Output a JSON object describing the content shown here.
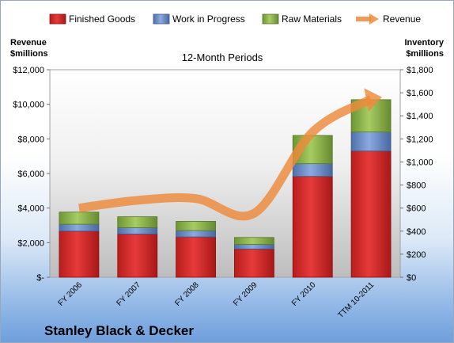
{
  "chart_data": {
    "type": "bar",
    "subtitle": "12-Month Periods",
    "company": "Stanley Black & Decker",
    "left_axis_title": [
      "Revenue",
      "$millions"
    ],
    "right_axis_title": [
      "Inventory",
      "$millions"
    ],
    "categories": [
      "FY 2006",
      "FY 2007",
      "FY 2008",
      "FY 2009",
      "FY 2010",
      "TTM 10-2011"
    ],
    "stacked": true,
    "series": [
      {
        "name": "Finished Goods",
        "axis": "right",
        "color": "#e02a2a",
        "values": [
          400,
          375,
          350,
          245,
          875,
          1095
        ]
      },
      {
        "name": "Work in Progress",
        "axis": "right",
        "color": "#6f92cc",
        "values": [
          60,
          55,
          55,
          40,
          110,
          165
        ]
      },
      {
        "name": "Raw Materials",
        "axis": "right",
        "color": "#8fb64a",
        "values": [
          105,
          95,
          80,
          60,
          245,
          280
        ]
      },
      {
        "name": "Revenue",
        "axis": "left",
        "type": "line",
        "color": "#ee8a3a",
        "values": [
          4000,
          4450,
          4550,
          3700,
          8400,
          10300
        ]
      }
    ],
    "left_axis": {
      "min": 0,
      "max": 12000,
      "step": 2000,
      "tick_labels": [
        "$-",
        "$2,000",
        "$4,000",
        "$6,000",
        "$8,000",
        "$10,000",
        "$12,000"
      ]
    },
    "right_axis": {
      "min": 0,
      "max": 1800,
      "step": 200,
      "tick_labels": [
        "$0",
        "$200",
        "$400",
        "$600",
        "$800",
        "$1,000",
        "$1,200",
        "$1,400",
        "$1,600",
        "$1,800"
      ]
    },
    "legend_position": "top",
    "grid": false
  }
}
